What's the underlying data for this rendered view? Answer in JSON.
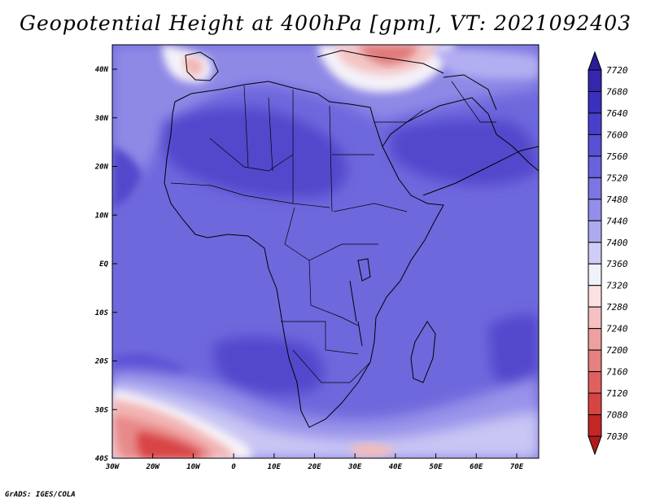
{
  "title": "Geopotential Height at 400hPa [gpm], VT: 2021092403",
  "credit": "GrADS: IGES/COLA",
  "map": {
    "lat_ticks": [
      "40N",
      "30N",
      "20N",
      "10N",
      "EQ",
      "10S",
      "20S",
      "30S",
      "40S"
    ],
    "lon_ticks": [
      "30W",
      "20W",
      "10W",
      "0",
      "10E",
      "20E",
      "30E",
      "40E",
      "50E",
      "60E",
      "70E"
    ]
  },
  "colorbar": {
    "levels": [
      "7720",
      "7680",
      "7640",
      "7600",
      "7560",
      "7520",
      "7480",
      "7440",
      "7400",
      "7360",
      "7320",
      "7280",
      "7240",
      "7200",
      "7160",
      "7120",
      "7080",
      "7030"
    ],
    "colors": [
      "#2a1d9a",
      "#3626b0",
      "#3b2fc0",
      "#4a3fcb",
      "#5a50d4",
      "#6a62dc",
      "#7c75e2",
      "#938ee9",
      "#aeaaf0",
      "#cfcdf6",
      "#f1f1fb",
      "#fbe1e1",
      "#f5c0c0",
      "#ee9f9f",
      "#e78080",
      "#e06060",
      "#d84444",
      "#c42626",
      "#b01c1c"
    ]
  },
  "colors": {
    "base_blue": "#6e68dd",
    "deep_blue": "#4c42c8",
    "light_blue": "#a7a2ee",
    "pale": "#dcdaf7",
    "red": "#d43a3a",
    "light_red": "#f2b4b4"
  }
}
